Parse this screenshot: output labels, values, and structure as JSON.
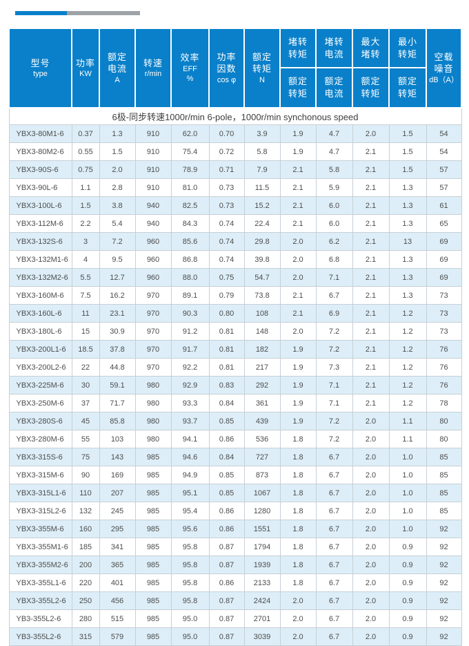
{
  "decor": {
    "accent_blue": "#0a80ca",
    "accent_gray": "#9ea3a7"
  },
  "table": {
    "colors": {
      "header_bg": "#0a80ca",
      "header_text": "#ffffff",
      "row_stripe_bg": "#ddeef8",
      "row_bg": "#ffffff",
      "grid_line": "#c6cfd6",
      "body_text": "#4c4c4c"
    },
    "header": {
      "model_zh": "型号",
      "model_en": "type",
      "power_zh": "功率",
      "power_en": "KW",
      "current_zh": "额定\n电流",
      "current_en": "A",
      "speed_zh": "转速",
      "speed_en": "r/min",
      "eff_zh": "效率",
      "eff_en": "EFF\n%",
      "pf_zh": "功率\n因数",
      "pf_en": "cos φ",
      "torque_zh": "额定\n转矩",
      "torque_en": "N",
      "locked_torque_top": "堵转\n转矩",
      "locked_current_top": "堵转\n电流",
      "max_torque_top": "最大\n堵转",
      "min_torque_top": "最小\n转矩",
      "locked_torque_bottom": "额定\n转矩",
      "locked_current_bottom": "额定\n电流",
      "max_torque_bottom": "额定\n转矩",
      "min_torque_bottom": "额定\n转矩",
      "noise_zh": "空载\n噪音",
      "noise_en": "dB（A）"
    },
    "section_label": "6极-同步转速1000r/min 6-pole，1000r/min synchonous speed",
    "col_keys": [
      "model",
      "power-kw",
      "rated-current",
      "speed",
      "efficiency",
      "power-factor",
      "rated-torque",
      "locked-torque-ratio",
      "locked-current-ratio",
      "max-torque-ratio",
      "min-torque-ratio",
      "noise"
    ],
    "rows": [
      [
        "YBX3-80M1-6",
        "0.37",
        "1.3",
        "910",
        "62.0",
        "0.70",
        "3.9",
        "1.9",
        "4.7",
        "2.0",
        "1.5",
        "54"
      ],
      [
        "YBX3-80M2-6",
        "0.55",
        "1.5",
        "910",
        "75.4",
        "0.72",
        "5.8",
        "1.9",
        "4.7",
        "2.1",
        "1.5",
        "54"
      ],
      [
        "YBX3-90S-6",
        "0.75",
        "2.0",
        "910",
        "78.9",
        "0.71",
        "7.9",
        "2.1",
        "5.8",
        "2.1",
        "1.5",
        "57"
      ],
      [
        "YBX3-90L-6",
        "1.1",
        "2.8",
        "910",
        "81.0",
        "0.73",
        "11.5",
        "2.1",
        "5.9",
        "2.1",
        "1.3",
        "57"
      ],
      [
        "YBX3-100L-6",
        "1.5",
        "3.8",
        "940",
        "82.5",
        "0.73",
        "15.2",
        "2.1",
        "6.0",
        "2.1",
        "1.3",
        "61"
      ],
      [
        "YBX3-112M-6",
        "2.2",
        "5.4",
        "940",
        "84.3",
        "0.74",
        "22.4",
        "2.1",
        "6.0",
        "2.1",
        "1.3",
        "65"
      ],
      [
        "YBX3-132S-6",
        "3",
        "7.2",
        "960",
        "85.6",
        "0.74",
        "29.8",
        "2.0",
        "6.2",
        "2.1",
        "13",
        "69"
      ],
      [
        "YBX3-132M1-6",
        "4",
        "9.5",
        "960",
        "86.8",
        "0.74",
        "39.8",
        "2.0",
        "6.8",
        "2.1",
        "1.3",
        "69"
      ],
      [
        "YBX3-132M2-6",
        "5.5",
        "12.7",
        "960",
        "88.0",
        "0.75",
        "54.7",
        "2.0",
        "7.1",
        "2.1",
        "1.3",
        "69"
      ],
      [
        "YBX3-160M-6",
        "7.5",
        "16.2",
        "970",
        "89.1",
        "0.79",
        "73.8",
        "2.1",
        "6.7",
        "2.1",
        "1.3",
        "73"
      ],
      [
        "YBX3-160L-6",
        "11",
        "23.1",
        "970",
        "90.3",
        "0.80",
        "108",
        "2.1",
        "6.9",
        "2.1",
        "1.2",
        "73"
      ],
      [
        "YBX3-180L-6",
        "15",
        "30.9",
        "970",
        "91.2",
        "0.81",
        "148",
        "2.0",
        "7.2",
        "2.1",
        "1.2",
        "73"
      ],
      [
        "YBX3-200L1-6",
        "18.5",
        "37.8",
        "970",
        "91.7",
        "0.81",
        "182",
        "1.9",
        "7.2",
        "2.1",
        "1.2",
        "76"
      ],
      [
        "YBX3-200L2-6",
        "22",
        "44.8",
        "970",
        "92.2",
        "0.81",
        "217",
        "1.9",
        "7.3",
        "2.1",
        "1.2",
        "76"
      ],
      [
        "YBX3-225M-6",
        "30",
        "59.1",
        "980",
        "92.9",
        "0.83",
        "292",
        "1.9",
        "7.1",
        "2.1",
        "1.2",
        "76"
      ],
      [
        "YBX3-250M-6",
        "37",
        "71.7",
        "980",
        "93.3",
        "0.84",
        "361",
        "1.9",
        "7.1",
        "2.1",
        "1.2",
        "78"
      ],
      [
        "YBX3-280S-6",
        "45",
        "85.8",
        "980",
        "93.7",
        "0.85",
        "439",
        "1.9",
        "7.2",
        "2.0",
        "1.1",
        "80"
      ],
      [
        "YBX3-280M-6",
        "55",
        "103",
        "980",
        "94.1",
        "0.86",
        "536",
        "1.8",
        "7.2",
        "2.0",
        "1.1",
        "80"
      ],
      [
        "YBX3-315S-6",
        "75",
        "143",
        "985",
        "94.6",
        "0.84",
        "727",
        "1.8",
        "6.7",
        "2.0",
        "1.0",
        "85"
      ],
      [
        "YBX3-315M-6",
        "90",
        "169",
        "985",
        "94.9",
        "0.85",
        "873",
        "1.8",
        "6.7",
        "2.0",
        "1.0",
        "85"
      ],
      [
        "YBX3-315L1-6",
        "110",
        "207",
        "985",
        "95.1",
        "0.85",
        "1067",
        "1.8",
        "6.7",
        "2.0",
        "1.0",
        "85"
      ],
      [
        "YBX3-315L2-6",
        "132",
        "245",
        "985",
        "95.4",
        "0.86",
        "1280",
        "1.8",
        "6.7",
        "2.0",
        "1.0",
        "85"
      ],
      [
        "YBX3-355M-6",
        "160",
        "295",
        "985",
        "95.6",
        "0.86",
        "1551",
        "1.8",
        "6.7",
        "2.0",
        "1.0",
        "92"
      ],
      [
        "YBX3-355M1-6",
        "185",
        "341",
        "985",
        "95.8",
        "0.87",
        "1794",
        "1.8",
        "6.7",
        "2.0",
        "0.9",
        "92"
      ],
      [
        "YBX3-355M2-6",
        "200",
        "365",
        "985",
        "95.8",
        "0.87",
        "1939",
        "1.8",
        "6.7",
        "2.0",
        "0.9",
        "92"
      ],
      [
        "YBX3-355L1-6",
        "220",
        "401",
        "985",
        "95.8",
        "0.86",
        "2133",
        "1.8",
        "6.7",
        "2.0",
        "0.9",
        "92"
      ],
      [
        "YBX3-355L2-6",
        "250",
        "456",
        "985",
        "95.8",
        "0.87",
        "2424",
        "2.0",
        "6.7",
        "2.0",
        "0.9",
        "92"
      ],
      [
        "YB3-355L2-6",
        "280",
        "515",
        "985",
        "95.0",
        "0.87",
        "2701",
        "2.0",
        "6.7",
        "2.0",
        "0.9",
        "92"
      ],
      [
        "YB3-355L2-6",
        "315",
        "579",
        "985",
        "95.0",
        "0.87",
        "3039",
        "2.0",
        "6.7",
        "2.0",
        "0.9",
        "92"
      ]
    ]
  }
}
